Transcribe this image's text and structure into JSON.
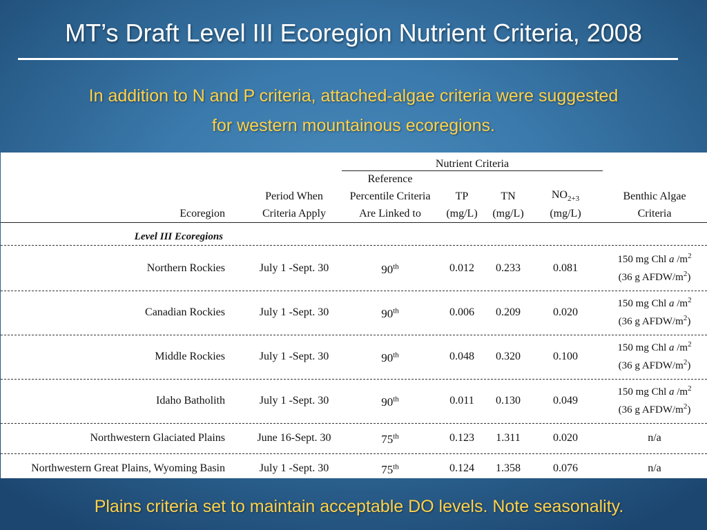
{
  "slide": {
    "title": "MT’s Draft Level III Ecoregion Nutrient Criteria, 2008",
    "subtitle_line1": "In addition to N and P criteria, attached-algae criteria were suggested",
    "subtitle_line2": "for western mountainous ecoregions.",
    "footer": "Plains criteria set to maintain acceptable DO levels. Note seasonality.",
    "colors": {
      "title": "#ffffff",
      "accent_text": "#ffd24a",
      "background": "#3a79ab"
    }
  },
  "table": {
    "group_header": "Nutrient Criteria",
    "headers": {
      "ecoregion": "Ecoregion",
      "period_l1": "Period When",
      "period_l2": "Criteria Apply",
      "ref_l1": "Reference",
      "ref_l2": "Percentile Criteria",
      "ref_l3": "Are Linked to",
      "tp_l1": "TP",
      "tp_l2": "(mg/L)",
      "tn_l1": "TN",
      "tn_l2": "(mg/L)",
      "no_base": "NO",
      "no_sub": "2+3",
      "no_l2": "(mg/L)",
      "benthic_l1": "Benthic Algae",
      "benthic_l2": "Criteria"
    },
    "section_label": "Level III Ecoregions",
    "algae_line1_pre": "150 mg Chl ",
    "algae_line1_a": "a",
    "algae_line1_post": " /m",
    "algae_line2_pre": "(36 g AFDW/m",
    "algae_line2_post": ")",
    "sup2": "2",
    "sup_th": "th",
    "rows": [
      {
        "ecoregion": "Northern Rockies",
        "period": "July 1 -Sept. 30",
        "percentile": "90",
        "tp": "0.012",
        "tn": "0.233",
        "no": "0.081",
        "benthic": "algae"
      },
      {
        "ecoregion": "Canadian Rockies",
        "period": "July 1 -Sept. 30",
        "percentile": "90",
        "tp": "0.006",
        "tn": "0.209",
        "no": "0.020",
        "benthic": "algae"
      },
      {
        "ecoregion": "Middle Rockies",
        "period": "July 1 -Sept. 30",
        "percentile": "90",
        "tp": "0.048",
        "tn": "0.320",
        "no": "0.100",
        "benthic": "algae"
      },
      {
        "ecoregion": "Idaho Batholith",
        "period": "July 1 -Sept. 30",
        "percentile": "90",
        "tp": "0.011",
        "tn": "0.130",
        "no": "0.049",
        "benthic": "algae"
      },
      {
        "ecoregion": "Northwestern Glaciated Plains",
        "period": "June 16-Sept. 30",
        "percentile": "75",
        "tp": "0.123",
        "tn": "1.311",
        "no": "0.020",
        "benthic": "n/a"
      },
      {
        "ecoregion": "Northwestern Great Plains, Wyoming Basin",
        "period": "July 1 -Sept. 30",
        "percentile": "75",
        "tp": "0.124",
        "tn": "1.358",
        "no": "0.076",
        "benthic": "n/a"
      }
    ]
  }
}
